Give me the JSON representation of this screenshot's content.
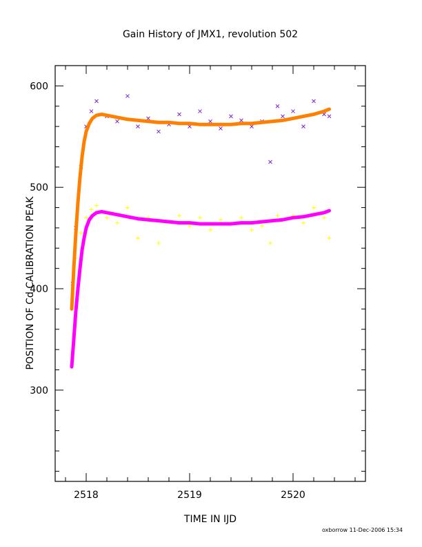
{
  "chart_data": {
    "type": "scatter",
    "title": "Gain History of JMX1, revolution 502",
    "xlabel": "TIME IN IJD",
    "ylabel": "POSITION OF Cd CALIBRATION PEAK",
    "xlim": [
      2517.7,
      2520.7
    ],
    "ylim": [
      210,
      620
    ],
    "x_ticks": [
      "2518",
      "2519",
      "2520"
    ],
    "y_ticks": [
      "300",
      "400",
      "500",
      "600"
    ],
    "grid": false,
    "series": [
      {
        "marker": "x",
        "color": "#7d26cd",
        "x": [
          2517.87,
          2517.9,
          2517.95,
          2518.0,
          2518.05,
          2518.1,
          2518.2,
          2518.3,
          2518.4,
          2518.5,
          2518.6,
          2518.7,
          2518.8,
          2518.9,
          2519.0,
          2519.1,
          2519.2,
          2519.3,
          2519.4,
          2519.5,
          2519.6,
          2519.7,
          2519.78,
          2519.85,
          2519.9,
          2520.0,
          2520.1,
          2520.2,
          2520.3,
          2520.35
        ],
        "y": [
          405,
          460,
          520,
          560,
          575,
          585,
          570,
          565,
          590,
          560,
          568,
          555,
          562,
          572,
          560,
          575,
          565,
          558,
          570,
          566,
          560,
          565,
          525,
          580,
          570,
          575,
          560,
          585,
          572,
          570
        ]
      },
      {
        "marker": "+",
        "color": "#ffff00",
        "x": [
          2517.87,
          2517.9,
          2517.95,
          2518.0,
          2518.05,
          2518.1,
          2518.2,
          2518.3,
          2518.4,
          2518.5,
          2518.6,
          2518.7,
          2518.8,
          2518.9,
          2519.0,
          2519.1,
          2519.2,
          2519.3,
          2519.4,
          2519.5,
          2519.6,
          2519.7,
          2519.78,
          2519.85,
          2519.9,
          2520.0,
          2520.1,
          2520.2,
          2520.3,
          2520.35
        ],
        "y": [
          395,
          430,
          455,
          470,
          478,
          482,
          470,
          465,
          480,
          450,
          470,
          445,
          465,
          472,
          462,
          470,
          458,
          468,
          465,
          470,
          458,
          462,
          445,
          472,
          468,
          472,
          465,
          480,
          470,
          450
        ]
      },
      {
        "marker": "line",
        "color": "#ff7f00",
        "x": [
          2517.86,
          2517.88,
          2517.9,
          2517.92,
          2517.94,
          2517.96,
          2517.98,
          2518.0,
          2518.03,
          2518.06,
          2518.1,
          2518.15,
          2518.2,
          2518.3,
          2518.4,
          2518.5,
          2518.6,
          2518.7,
          2518.8,
          2518.9,
          2519.0,
          2519.1,
          2519.2,
          2519.3,
          2519.4,
          2519.5,
          2519.6,
          2519.7,
          2519.8,
          2519.9,
          2520.0,
          2520.1,
          2520.2,
          2520.3,
          2520.35
        ],
        "y": [
          380,
          420,
          455,
          485,
          510,
          530,
          545,
          555,
          563,
          568,
          571,
          572,
          571,
          569,
          567,
          566,
          565,
          564,
          564,
          563,
          563,
          562,
          562,
          562,
          562,
          563,
          563,
          564,
          565,
          566,
          568,
          570,
          572,
          575,
          577
        ]
      },
      {
        "marker": "line",
        "color": "#ff00ff",
        "x": [
          2517.86,
          2517.88,
          2517.9,
          2517.92,
          2517.94,
          2517.96,
          2517.98,
          2518.0,
          2518.03,
          2518.06,
          2518.1,
          2518.15,
          2518.2,
          2518.3,
          2518.4,
          2518.5,
          2518.6,
          2518.7,
          2518.8,
          2518.9,
          2519.0,
          2519.1,
          2519.2,
          2519.3,
          2519.4,
          2519.5,
          2519.6,
          2519.7,
          2519.8,
          2519.9,
          2520.0,
          2520.1,
          2520.2,
          2520.3,
          2520.35
        ],
        "y": [
          323,
          350,
          378,
          400,
          420,
          438,
          450,
          460,
          468,
          472,
          475,
          476,
          475,
          473,
          471,
          469,
          468,
          467,
          466,
          465,
          465,
          464,
          464,
          464,
          464,
          465,
          465,
          466,
          467,
          468,
          470,
          471,
          473,
          475,
          477
        ]
      }
    ]
  },
  "footer": {
    "credit": "oxborrow 11-Dec-2006 15:34"
  }
}
